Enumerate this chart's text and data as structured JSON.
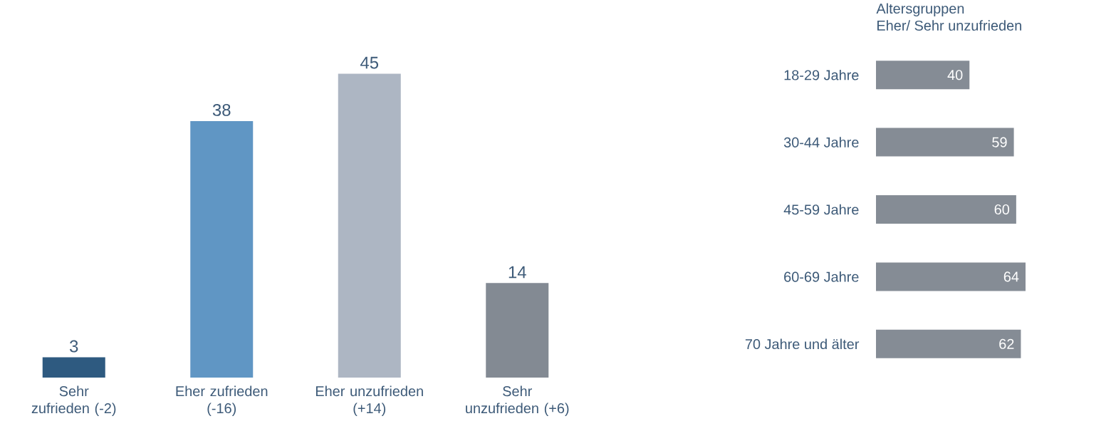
{
  "chart_data": [
    {
      "type": "bar",
      "categories": [
        "Sehr zufrieden (-2)",
        "Eher zufrieden (-16)",
        "Eher unzufrieden (+14)",
        "Sehr unzufrieden (+6)"
      ],
      "values": [
        3,
        38,
        45,
        14
      ],
      "colors": [
        "#2e5a80",
        "#6096c4",
        "#adb6c3",
        "#838a93"
      ],
      "data_labels": true,
      "tick_labels": "x"
    },
    {
      "type": "bar",
      "orientation": "horizontal",
      "title": "Altersgruppen",
      "subtitle": "Eher/ Sehr unzufrieden",
      "categories": [
        "18-29 Jahre",
        "30-44 Jahre",
        "45-59 Jahre",
        "60-69 Jahre",
        "70 Jahre und älter"
      ],
      "values": [
        40,
        59,
        60,
        64,
        62
      ],
      "color": "#858c95",
      "data_labels": true,
      "tick_labels": "y"
    }
  ]
}
